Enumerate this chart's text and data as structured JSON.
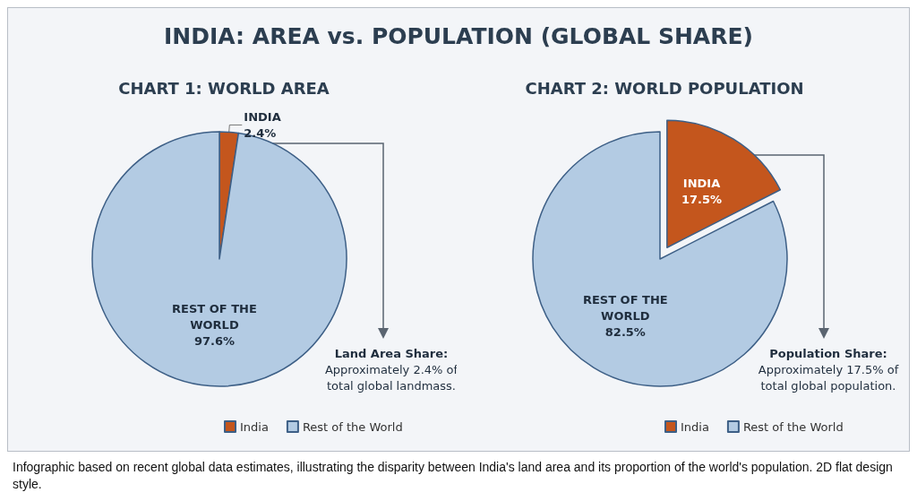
{
  "chart_data": [
    {
      "type": "pie",
      "title": "CHART 1: WORLD AREA",
      "categories": [
        "India",
        "Rest of the World"
      ],
      "values": [
        2.4,
        97.6
      ],
      "colors": [
        "#c4561d",
        "#b3cbe3"
      ],
      "value_labels": [
        "INDIA\n2.4%",
        "REST OF THE\nWORLD\n97.6%"
      ],
      "legend": "bottom",
      "annotations": [
        "Land Area Share:\nApproximately 2.4% of\ntotal global landmass."
      ]
    },
    {
      "type": "pie",
      "title": "CHART 2: WORLD POPULATION",
      "categories": [
        "India",
        "Rest of the World"
      ],
      "values": [
        17.5,
        82.5
      ],
      "colors": [
        "#c4561d",
        "#b3cbe3"
      ],
      "value_labels": [
        "INDIA\n17.5%",
        "REST OF THE\nWORLD\n82.5%"
      ],
      "legend": "bottom",
      "annotations": [
        "Population Share:\nApproximately 17.5% of\ntotal global population."
      ]
    },
    {
      "type": "other",
      "title": "INDIA: AREA vs. POPULATION (GLOBAL SHARE)",
      "annotations": [
        "Infographic based on recent global data estimates, illustrating the disparity between India's land area and its proportion of the world's population. 2D flat design style."
      ]
    }
  ]
}
